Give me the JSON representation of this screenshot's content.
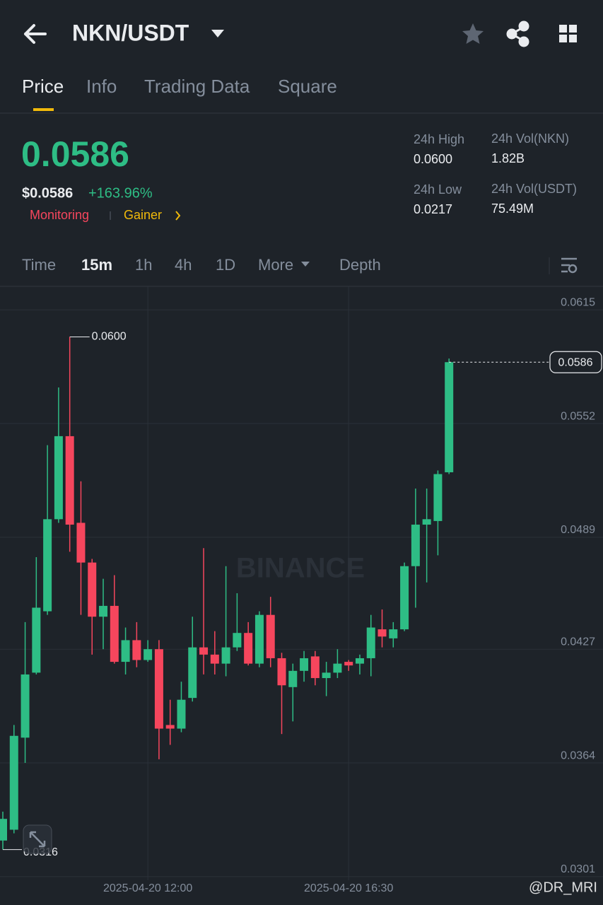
{
  "header": {
    "pair": "NKN/USDT"
  },
  "tabs": [
    "Price",
    "Info",
    "Trading Data",
    "Square"
  ],
  "price": {
    "last": "0.0586",
    "usd": "$0.0586",
    "change": "+163.96%",
    "tags": [
      "Monitoring",
      "Gainer"
    ]
  },
  "stats": [
    {
      "label": "24h High",
      "value": "0.0600"
    },
    {
      "label": "24h Vol(NKN)",
      "value": "1.82B"
    },
    {
      "label": "24h Low",
      "value": "0.0217"
    },
    {
      "label": "24h Vol(USDT)",
      "value": "75.49M"
    }
  ],
  "intervals": [
    "Time",
    "15m",
    "1h",
    "4h",
    "1D",
    "More",
    "Depth"
  ],
  "watermark": "BINANCE",
  "credit": "@DR_MRI",
  "chart_data": {
    "type": "candlestick",
    "categories": [
      null,
      null,
      null,
      null,
      null,
      null,
      null,
      null,
      null,
      null,
      null,
      null,
      null,
      "2025-04-20 12:00",
      null,
      null,
      null,
      null,
      null,
      null,
      null,
      null,
      null,
      null,
      null,
      null,
      null,
      null,
      null,
      null,
      null,
      "2025-04-20 16:30",
      null,
      null,
      null,
      null,
      null,
      null,
      null,
      null,
      null
    ],
    "open": [
      0.0321,
      0.0327,
      0.0378,
      0.0414,
      0.0448,
      0.0499,
      0.0545,
      0.0497,
      0.0475,
      0.0445,
      0.0451,
      0.042,
      0.0432,
      0.0421,
      0.0427,
      0.0385,
      0.0383,
      0.04,
      0.0428,
      0.0424,
      0.0419,
      0.0428,
      0.0436,
      0.0419,
      0.0446,
      0.0422,
      0.0406,
      0.0415,
      0.0423,
      0.0411,
      0.0414,
      0.042,
      0.0419,
      0.0422,
      0.0438,
      0.0433,
      0.0438,
      0.0473,
      0.0496,
      0.0498,
      0.0525
    ],
    "high": [
      0.0337,
      0.0385,
      0.0442,
      0.0478,
      0.054,
      0.0572,
      0.06,
      0.052,
      0.0477,
      0.0466,
      0.0468,
      0.0439,
      0.0442,
      0.0432,
      0.0432,
      0.0399,
      0.0409,
      0.0445,
      0.0483,
      0.0437,
      0.0473,
      0.0458,
      0.0442,
      0.0448,
      0.0456,
      0.0425,
      0.0419,
      0.0426,
      0.0426,
      0.042,
      0.0427,
      0.0421,
      0.0424,
      0.0446,
      0.0449,
      0.0442,
      0.0475,
      0.0516,
      0.0516,
      0.0526,
      0.0588
    ],
    "low": [
      0.0316,
      0.0325,
      0.0364,
      0.0413,
      0.0446,
      0.0497,
      0.0481,
      0.0446,
      0.0424,
      0.0427,
      0.0419,
      0.0413,
      0.0417,
      0.042,
      0.0366,
      0.0374,
      0.0381,
      0.0398,
      0.0413,
      0.0413,
      0.0412,
      0.0426,
      0.0418,
      0.0417,
      0.0417,
      0.038,
      0.0387,
      0.0409,
      0.0407,
      0.0401,
      0.0411,
      0.0415,
      0.0413,
      0.0412,
      0.0428,
      0.0428,
      0.0437,
      0.045,
      0.0464,
      0.0479,
      0.0524
    ],
    "close": [
      0.0333,
      0.0379,
      0.0413,
      0.045,
      0.0499,
      0.0545,
      0.0496,
      0.0475,
      0.0445,
      0.0451,
      0.042,
      0.0432,
      0.0421,
      0.0427,
      0.0383,
      0.0383,
      0.0399,
      0.0428,
      0.0424,
      0.0419,
      0.0428,
      0.0436,
      0.0419,
      0.0446,
      0.0422,
      0.0407,
      0.0415,
      0.0422,
      0.0411,
      0.0414,
      0.0419,
      0.0418,
      0.0422,
      0.0439,
      0.0434,
      0.0438,
      0.0473,
      0.0496,
      0.0499,
      0.0524,
      0.0586
    ],
    "up_color": "#2ebd85",
    "down_color": "#f6465d",
    "ylim": [
      0.0299,
      0.0628
    ],
    "yticks": [
      0.0615,
      0.0552,
      0.0489,
      0.0427,
      0.0364,
      0.0301
    ],
    "grid": true,
    "max_label": {
      "value": 0.06,
      "label": "0.0600"
    },
    "min_label": {
      "value": 0.0316,
      "label": "0.0316"
    },
    "last_label": {
      "value": 0.0586,
      "label": "0.0586"
    }
  }
}
